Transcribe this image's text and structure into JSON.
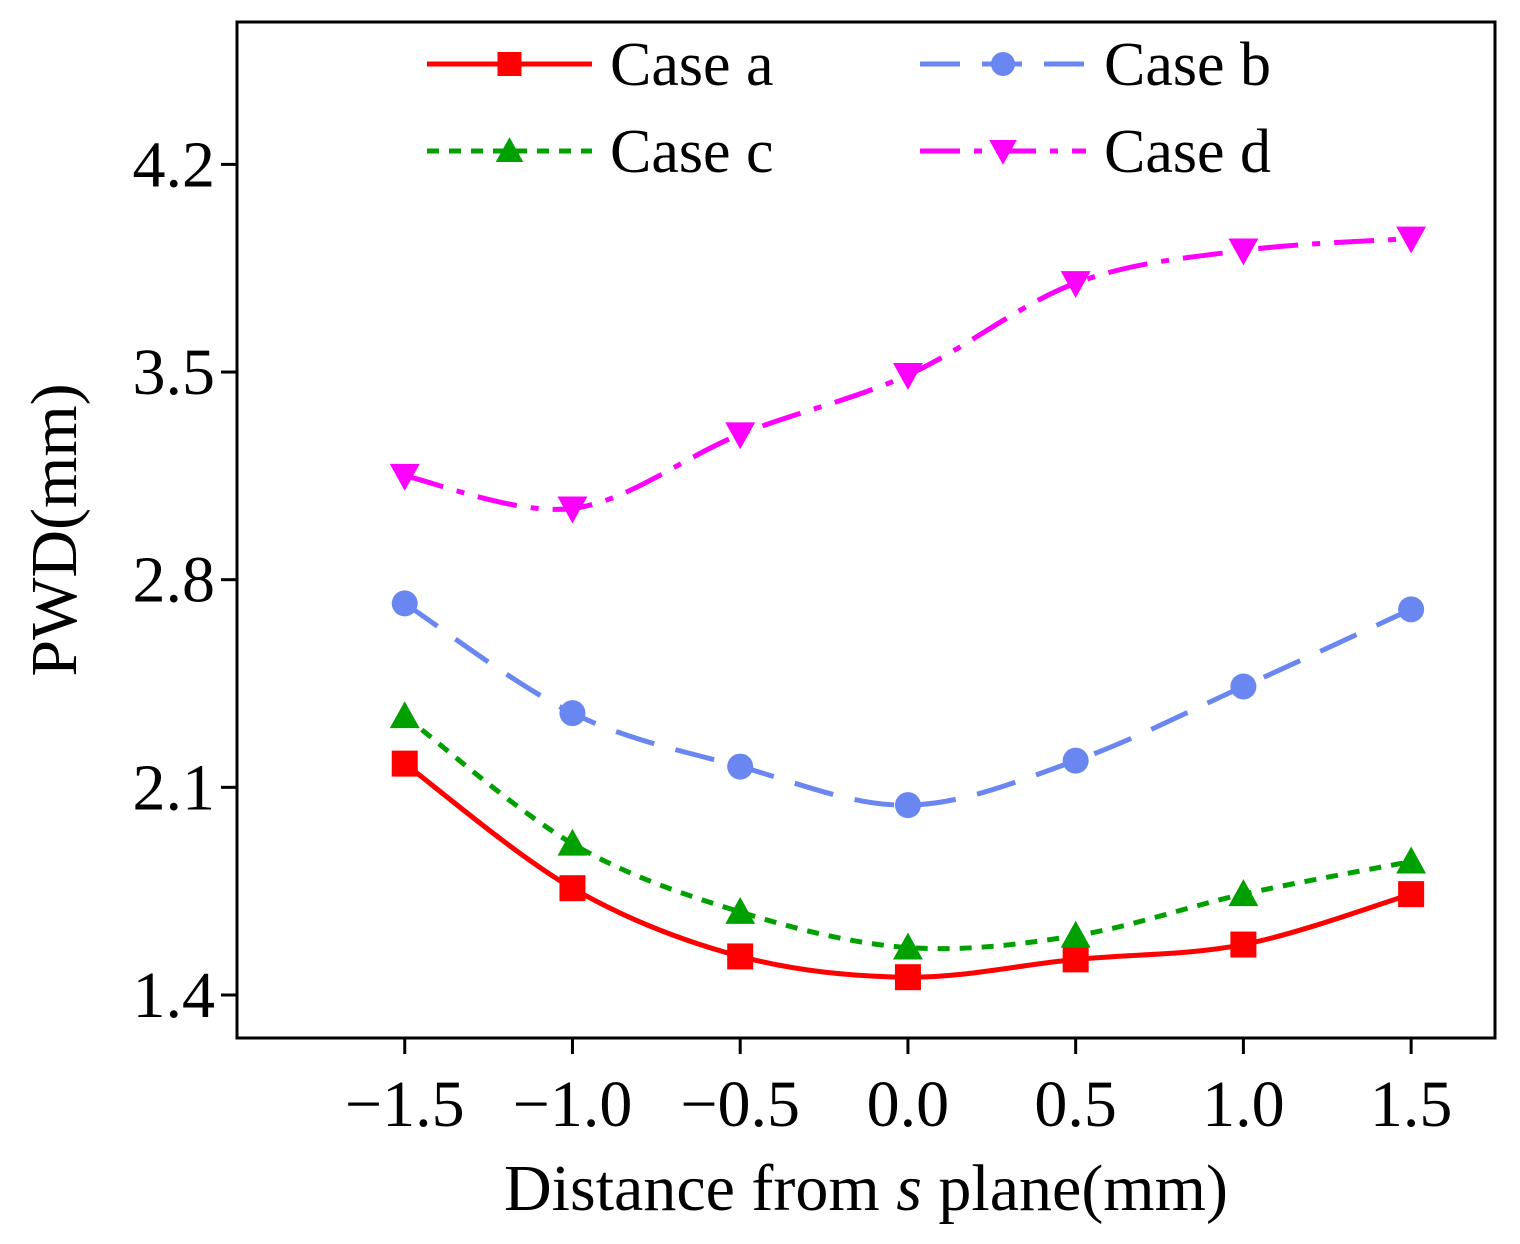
{
  "chart_data": {
    "type": "line",
    "title": "",
    "xlabel_pre": "Distance from ",
    "xlabel_italic": "s",
    "xlabel_post": " plane(mm)",
    "ylabel": "PWD(mm)",
    "x": [
      -1.5,
      -1.0,
      -0.5,
      0.0,
      0.5,
      1.0,
      1.5
    ],
    "xlim": [
      -2.0,
      1.75
    ],
    "ylim": [
      1.255,
      4.68
    ],
    "x_ticks": [
      -1.5,
      -1.0,
      -0.5,
      0.0,
      0.5,
      1.0,
      1.5
    ],
    "x_tick_labels": [
      "−1.5",
      "−1.0",
      "−0.5",
      "0.0",
      "0.5",
      "1.0",
      "1.5"
    ],
    "y_ticks": [
      1.4,
      2.1,
      2.8,
      3.5,
      4.2
    ],
    "y_tick_labels": [
      "1.4",
      "2.1",
      "2.8",
      "3.5",
      "4.2"
    ],
    "grid": false,
    "legend_position": "top",
    "series": [
      {
        "name": "Case a",
        "color": "#ff0000",
        "line_style": "solid",
        "marker": "square",
        "values": [
          2.18,
          1.76,
          1.53,
          1.46,
          1.52,
          1.57,
          1.74
        ]
      },
      {
        "name": "Case b",
        "color": "#6a86f0",
        "line_style": "dashed",
        "marker": "circle",
        "values": [
          2.72,
          2.35,
          2.17,
          2.04,
          2.19,
          2.44,
          2.7
        ]
      },
      {
        "name": "Case c",
        "color": "#00a000",
        "line_style": "dotted",
        "marker": "triangle-up",
        "values": [
          2.34,
          1.91,
          1.68,
          1.56,
          1.6,
          1.74,
          1.85
        ]
      },
      {
        "name": "Case d",
        "color": "#ff00ff",
        "line_style": "dashdot",
        "marker": "triangle-down",
        "values": [
          3.15,
          3.04,
          3.29,
          3.49,
          3.8,
          3.91,
          3.95
        ]
      }
    ]
  }
}
